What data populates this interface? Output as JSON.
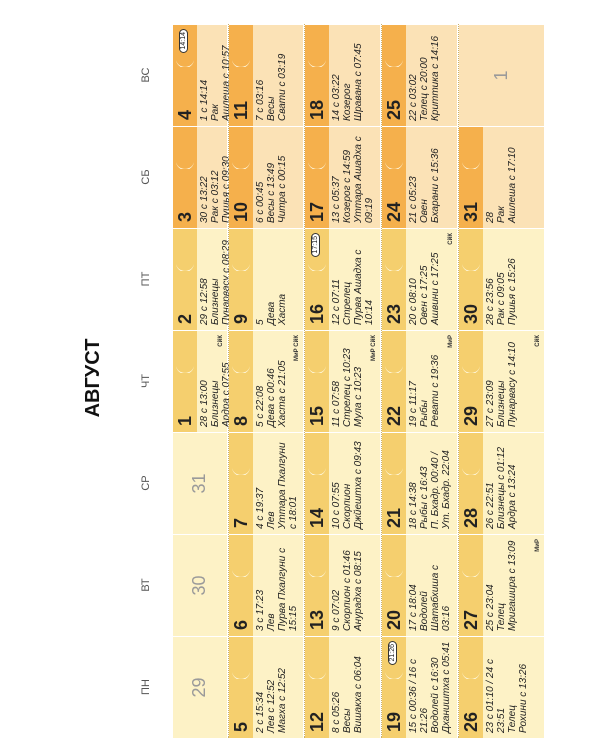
{
  "title": "АВГУСТ",
  "weekdays": [
    "ПН",
    "ВТ",
    "СР",
    "ЧТ",
    "ПТ",
    "СБ",
    "ВС"
  ],
  "weeks": [
    [
      {
        "day": "29",
        "other_month": true
      },
      {
        "day": "30",
        "other_month": true
      },
      {
        "day": "31",
        "other_month": true
      },
      {
        "day": "1",
        "lines": [
          "28 с 13:00",
          "Близнецы",
          "Ардра с 07:55"
        ],
        "tag": "СйК"
      },
      {
        "day": "2",
        "lines": [
          "29 с 12:58",
          "Близнецы",
          "Пунарвасу с 08:29"
        ]
      },
      {
        "day": "3",
        "lines": [
          "30 с 13:22",
          "Рак с 03:12",
          "Пушья с 09:30"
        ]
      },
      {
        "day": "4",
        "lines": [
          "1 с 14:14",
          "Рак",
          "Ашлеша с 10:57"
        ],
        "mark": "14:14"
      }
    ],
    [
      {
        "day": "5",
        "lines": [
          "2 с 15:34",
          "Лев с 12:52",
          "Магха с 12:52"
        ]
      },
      {
        "day": "6",
        "lines": [
          "3 с 17:23",
          "Лев",
          "Пурва Пхалгуни с 15:15"
        ]
      },
      {
        "day": "7",
        "lines": [
          "4 с 19:37",
          "Лев",
          "Уттара Пхалгуни с 18:01"
        ]
      },
      {
        "day": "8",
        "lines": [
          "5 с 22:08",
          "Дева с 00:46",
          "Хаста с 21:05"
        ],
        "tag": "МиР СйК"
      },
      {
        "day": "9",
        "lines": [
          "5",
          "Дева",
          "Хаста"
        ]
      },
      {
        "day": "10",
        "lines": [
          "6 с 00:45",
          "Весы с 13:49",
          "Читра с 00:15"
        ]
      },
      {
        "day": "11",
        "lines": [
          "7 с 03:16",
          "Весы",
          "Свати с 03:19"
        ]
      }
    ],
    [
      {
        "day": "12",
        "lines": [
          "8 с 05:26",
          "Весы",
          "Вишакха с 06:04"
        ]
      },
      {
        "day": "13",
        "lines": [
          "9 с 07:02",
          "Скорпион с 01:46",
          "Анурадха с 08:15"
        ]
      },
      {
        "day": "14",
        "lines": [
          "10 с 07:55",
          "Скорпион",
          "Джйештха с 09:43"
        ]
      },
      {
        "day": "15",
        "lines": [
          "11 с 07:58",
          "Стрелец с 10:23",
          "Мула с 10:23"
        ],
        "tag": "МиР СйК"
      },
      {
        "day": "16",
        "lines": [
          "12 с 07:11",
          "Стрелец",
          "Пурва Ашадха с 10:14"
        ],
        "mark": "17:15"
      },
      {
        "day": "17",
        "lines": [
          "13 с 05:37",
          "Козерог с 14:59",
          "Уттара Ашадха с 09:19"
        ]
      },
      {
        "day": "18",
        "lines": [
          "14 с 03:22",
          "Козерог",
          "Шравана с 07:45"
        ]
      }
    ],
    [
      {
        "day": "19",
        "lines": [
          "15 с 00:36 / 16 с 21:26",
          "Водолей с 16:30",
          "Дхаништха с 05:41"
        ],
        "mark": "21:26"
      },
      {
        "day": "20",
        "lines": [
          "17 с 18:04",
          "Водолей",
          "Шатабхиша с 03:16"
        ]
      },
      {
        "day": "21",
        "lines": [
          "18 с 14:38",
          "Рыбы с 16:43",
          "П. Бхадр. 00:40 /",
          "Ут. Бхадр. 22:04"
        ]
      },
      {
        "day": "22",
        "lines": [
          "19 с 11:17",
          "Рыбы",
          "Ревати с 19:36"
        ],
        "tag": "МиР"
      },
      {
        "day": "23",
        "lines": [
          "20 с 08:10",
          "Овен с 17:25",
          "Ашвини с 17:25"
        ],
        "tag": "СйК"
      },
      {
        "day": "24",
        "lines": [
          "21 с 05:23",
          "Овен",
          "Бхарани с 15:36"
        ]
      },
      {
        "day": "25",
        "lines": [
          "22 с 03:02",
          "Телец с 20:00",
          "Криттика с 14:16"
        ]
      }
    ],
    [
      {
        "day": "26",
        "lines": [
          "23 с 01:10 / 24 с 23:51",
          "Телец",
          "Рохини с 13:26"
        ]
      },
      {
        "day": "27",
        "lines": [
          "25 с 23:04",
          "Телец",
          "Мригашира с 13:09"
        ],
        "tag": "МиР"
      },
      {
        "day": "28",
        "lines": [
          "26 с 22:51",
          "Близнецы с 01:12",
          "Ардра с 13:24"
        ]
      },
      {
        "day": "29",
        "lines": [
          "27 с 23:09",
          "Близнецы",
          "Пунарвасу с 14:10"
        ],
        "tag": "СйК"
      },
      {
        "day": "30",
        "lines": [
          "28 с 23:56",
          "Рак с 09:05",
          "Пушья с 15:26"
        ]
      },
      {
        "day": "31",
        "lines": [
          "28",
          "Рак",
          "Ашлеша с 17:10"
        ]
      },
      {
        "day": "1",
        "other_month": true
      }
    ]
  ]
}
